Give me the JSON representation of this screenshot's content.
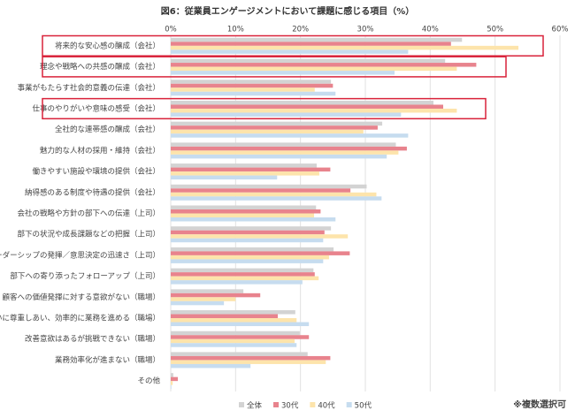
{
  "chart_data": {
    "type": "hbar",
    "title": "図6：従業員エンゲージメントにおいて課題に感じる項目（%）",
    "annotation": "※複数選択可",
    "categories": [
      "将来的な安心感の醸成（会社）",
      "理念や戦略への共感の醸成（会社）",
      "事業がもたらす社会的意義の伝達（会社）",
      "仕事のやりがいや意味の感受（会社）",
      "全社的な連帯感の醸成（会社）",
      "魅力的な人材の採用・維持（会社）",
      "働きやすい施設や環境の提供（会社）",
      "納得感のある制度や待遇の提供（会社）",
      "会社の戦略や方針の部下への伝達（上司）",
      "部下の状況や成長課題などの把握（上司）",
      "リーダーシップの発揮／意思決定の迅速さ（上司）",
      "部下への寄り添ったフォローアップ（上司）",
      "顧客への価値発揮に対する意欲がない（職場）",
      "互いに尊重しあい、効率的に業務を進める（職場）",
      "改善意欲はあるが挑戦できない（職場）",
      "業務効率化が進まない（職場）",
      "その他"
    ],
    "series": [
      {
        "name": "全体",
        "color": "#d3d3d3",
        "values": [
          44.9,
          42.3,
          24.7,
          40.5,
          32.6,
          34.7,
          22.5,
          30.2,
          22.4,
          24.7,
          25.1,
          22.0,
          11.2,
          19.2,
          19.9,
          21.1,
          0.4
        ]
      },
      {
        "name": "30代",
        "color": "#e8838d",
        "values": [
          43.2,
          47.1,
          25.0,
          42.0,
          31.9,
          36.4,
          24.6,
          27.7,
          23.1,
          23.7,
          27.6,
          22.2,
          13.8,
          16.5,
          21.3,
          24.6,
          1.1
        ]
      },
      {
        "name": "40代",
        "color": "#fde4ab",
        "values": [
          53.6,
          44.1,
          22.2,
          44.1,
          29.7,
          35.1,
          22.9,
          31.7,
          22.1,
          27.3,
          24.4,
          22.8,
          10.0,
          19.4,
          19.1,
          23.9,
          0.3
        ]
      },
      {
        "name": "50代",
        "color": "#c6dcef",
        "values": [
          36.6,
          34.5,
          25.4,
          35.5,
          36.6,
          33.3,
          16.4,
          32.5,
          25.4,
          23.5,
          23.5,
          20.3,
          8.2,
          21.3,
          19.4,
          12.3,
          0.1
        ]
      }
    ],
    "xlim": [
      0,
      60
    ],
    "xticks": [
      {
        "value": 0,
        "label": "0%"
      },
      {
        "value": 10,
        "label": "10%"
      },
      {
        "value": 20,
        "label": "20%"
      },
      {
        "value": 30,
        "label": "30%"
      },
      {
        "value": 40,
        "label": "40%"
      },
      {
        "value": 50,
        "label": "50%"
      },
      {
        "value": 60,
        "label": "60%"
      }
    ],
    "grid": true
  }
}
